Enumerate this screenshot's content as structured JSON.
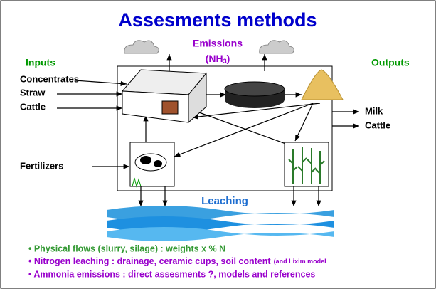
{
  "header": {
    "title": "Assesments methods"
  },
  "emissions": {
    "label": "Emissions",
    "formula_prefix": "(NH",
    "formula_sub": "3",
    "formula_suffix": ")"
  },
  "inputs": {
    "label": "Inputs",
    "items": [
      "Concentrates",
      "Straw",
      "Cattle"
    ],
    "fertilizers": "Fertilizers"
  },
  "outputs": {
    "label": "Outputs",
    "items": [
      "Milk",
      "Cattle"
    ]
  },
  "leaching": "Leaching",
  "bullets": [
    {
      "text": "• Physical flows (slurry, silage) : weights x % N"
    },
    {
      "text": "• Nitrogen leaching : drainage, ceramic cups, soil content",
      "note": "(and Lixim model"
    },
    {
      "text": "• Ammonia emissions : direct assesments ?, models and references"
    }
  ]
}
